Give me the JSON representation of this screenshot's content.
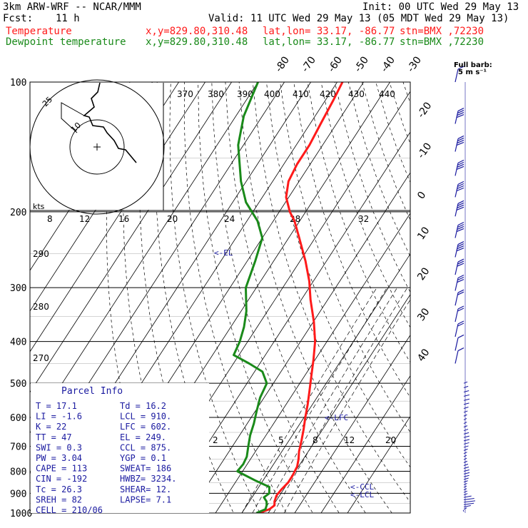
{
  "header": {
    "model": "3km ARW-WRF -- NCAR/MMM",
    "init": "Init: 00 UTC Wed 29 May 13",
    "fcst_label": "Fcst:",
    "fcst_value": "11 h",
    "valid": "Valid: 11 UTC Wed 29 May 13 (05 MDT Wed 29 May 13)",
    "temp_line": {
      "name": "Temperature",
      "xy": "x,y=829.80,310.48",
      "latlon": "lat,lon= 33.17, -86.77",
      "stn": "stn=BMX ,72230"
    },
    "dew_line": {
      "name": "Dewpoint temperature",
      "xy": "x,y=829.80,310.48",
      "latlon": "lat,lon= 33.17, -86.77",
      "stn": "stn=BMX ,72230"
    }
  },
  "colors": {
    "temperature": "#ff1a1a",
    "dewpoint": "#1a8a1a",
    "theta_e_labels": "#000000",
    "parcel_text": "#1a1aa0",
    "frame": "#000000"
  },
  "legend": {
    "full_barb_line1": "Full barb:",
    "full_barb_line2": "5 m s⁻¹"
  },
  "hodograph": {
    "units": "kts",
    "ring_labels": [
      "25",
      "10"
    ],
    "speed_ticks": [
      "8",
      "12",
      "16",
      "20",
      "24",
      "28",
      "32"
    ]
  },
  "parcel": {
    "title": "Parcel Info",
    "rows": [
      {
        "left": "T  =    17.1",
        "right": "Td =   16.2"
      },
      {
        "left": "LI =    -1.6",
        "right": "LCL =  910."
      },
      {
        "left": "K  =      22",
        "right": "LFC =  602."
      },
      {
        "left": "TT =      47",
        "right": "EL  =  249."
      },
      {
        "left": "SWI =    0.3",
        "right": "CCL =  875."
      },
      {
        "left": "PW =    3.04",
        "right": "YGP =   0.1"
      },
      {
        "left": "CAPE =   113",
        "right": "SWEAT=  186"
      },
      {
        "left": "CIN =   -192",
        "right": "HWBZ= 3234."
      },
      {
        "left": "Tc =    26.3",
        "right": "SHEAR=  12."
      },
      {
        "left": "SREH =    82",
        "right": "LAPSE=  7.1"
      },
      {
        "left": "CELL = 210/06",
        "right": ""
      }
    ]
  },
  "annotations": {
    "el": "<-EL",
    "lfc": "<-LFC",
    "ccl": "<-CCL",
    "lcl": "<-LCL"
  },
  "chart_data": {
    "type": "line",
    "chart_kind": "skew-T log-p",
    "pressure_levels": [
      100,
      200,
      300,
      400,
      500,
      600,
      700,
      800,
      900,
      1000
    ],
    "temperature_isotherm_labels": [
      -80,
      -70,
      -60,
      -50,
      -40,
      -30,
      -20,
      -10,
      0,
      10,
      20,
      30,
      40
    ],
    "theta_labels": [
      370,
      380,
      390,
      400,
      410,
      420,
      430,
      440
    ],
    "theta_left_labels": [
      290,
      280,
      270
    ],
    "mixing_ratio_labels": [
      2,
      5,
      8,
      12,
      20
    ],
    "series": [
      {
        "name": "Temperature",
        "color": "#ff1a1a",
        "points": [
          [
            1000,
            16.5
          ],
          [
            980,
            19.5
          ],
          [
            960,
            20.5
          ],
          [
            940,
            19.5
          ],
          [
            910,
            18.8
          ],
          [
            880,
            19.2
          ],
          [
            850,
            20.0
          ],
          [
            820,
            20.0
          ],
          [
            780,
            19.5
          ],
          [
            750,
            18.2
          ],
          [
            720,
            16.5
          ],
          [
            680,
            14.8
          ],
          [
            640,
            12.8
          ],
          [
            600,
            10.5
          ],
          [
            560,
            8.2
          ],
          [
            520,
            5.5
          ],
          [
            480,
            2.5
          ],
          [
            440,
            -0.7
          ],
          [
            400,
            -4.5
          ],
          [
            360,
            -9.8
          ],
          [
            320,
            -16.5
          ],
          [
            290,
            -21.5
          ],
          [
            260,
            -28
          ],
          [
            230,
            -36
          ],
          [
            210,
            -42
          ],
          [
            200,
            -46
          ],
          [
            185,
            -51
          ],
          [
            170,
            -54
          ],
          [
            155,
            -55
          ],
          [
            140,
            -55
          ],
          [
            125,
            -56
          ],
          [
            110,
            -57
          ],
          [
            100,
            -58
          ]
        ]
      },
      {
        "name": "Dewpoint temperature",
        "color": "#1a8a1a",
        "points": [
          [
            1000,
            15.5
          ],
          [
            980,
            18.0
          ],
          [
            960,
            17.5
          ],
          [
            940,
            16.5
          ],
          [
            920,
            14.5
          ],
          [
            900,
            15.5
          ],
          [
            870,
            14.0
          ],
          [
            840,
            7.0
          ],
          [
            800,
            -2.0
          ],
          [
            770,
            -1.5
          ],
          [
            740,
            -2.0
          ],
          [
            700,
            -4.0
          ],
          [
            660,
            -6.0
          ],
          [
            620,
            -7.5
          ],
          [
            580,
            -9.5
          ],
          [
            540,
            -11.5
          ],
          [
            500,
            -12.5
          ],
          [
            470,
            -17
          ],
          [
            450,
            -24
          ],
          [
            430,
            -32
          ],
          [
            400,
            -33
          ],
          [
            370,
            -35
          ],
          [
            340,
            -38
          ],
          [
            300,
            -44
          ],
          [
            260,
            -47
          ],
          [
            230,
            -50
          ],
          [
            210,
            -56
          ],
          [
            190,
            -65
          ],
          [
            170,
            -72
          ],
          [
            140,
            -82
          ],
          [
            120,
            -87
          ],
          [
            100,
            -90
          ]
        ]
      }
    ],
    "wind_barbs": [
      {
        "p": 100,
        "spd": 8
      },
      {
        "p": 125,
        "spd": 40
      },
      {
        "p": 145,
        "spd": 42
      },
      {
        "p": 165,
        "spd": 42
      },
      {
        "p": 185,
        "spd": 42
      },
      {
        "p": 205,
        "spd": 40
      },
      {
        "p": 230,
        "spd": 38
      },
      {
        "p": 255,
        "spd": 35
      },
      {
        "p": 280,
        "spd": 32
      },
      {
        "p": 305,
        "spd": 28
      },
      {
        "p": 330,
        "spd": 22
      },
      {
        "p": 360,
        "spd": 18
      },
      {
        "p": 390,
        "spd": 15
      },
      {
        "p": 420,
        "spd": 12
      },
      {
        "p": 450,
        "spd": 10
      }
    ],
    "hodograph_trace": [
      [
        -0.35,
        -0.9
      ],
      [
        -0.5,
        -0.15
      ],
      [
        0.05,
        0.15
      ],
      [
        0.55,
        0.6
      ],
      [
        0.8,
        0.72
      ],
      [
        1.05,
        0.95
      ]
    ]
  }
}
